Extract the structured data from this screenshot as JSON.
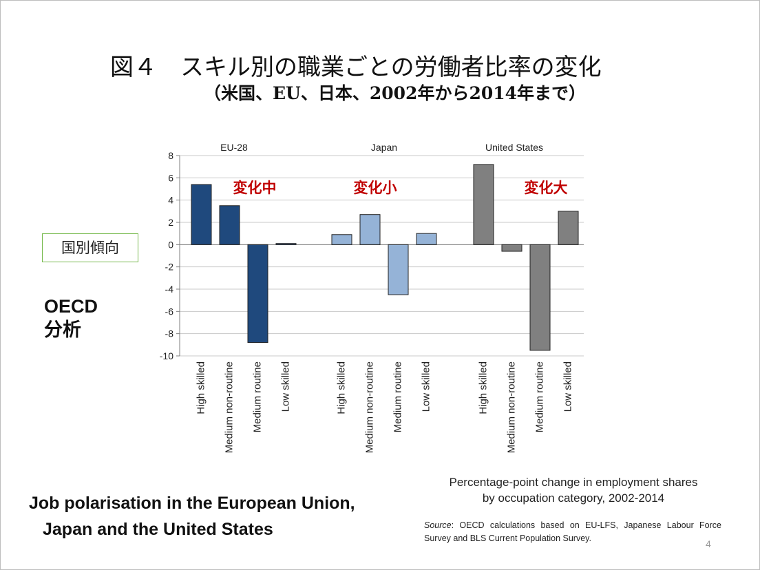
{
  "slide": {
    "title": "図４　スキル別の職業ごとの労働者比率の変化",
    "subtitle": "（米国、EU、日本、2002年から2014年まで）",
    "country_label": "国別傾向",
    "oecd_label_line1": "OECD",
    "oecd_label_line2": "分析",
    "english_title_line1": "Job polarisation in the European Union,",
    "english_title_line2": "Japan and the United States",
    "caption_line1": "Percentage-point change in employment shares",
    "caption_line2": "by occupation category, 2002-2014",
    "source_label": "Source",
    "source_text": ": OECD calculations based on EU-LFS, Japanese Labour Force Survey and BLS Current Population Survey.",
    "page_number": "4",
    "accent_color": "#c00000",
    "box_border_color": "#74b84a"
  },
  "chart_data": {
    "type": "bar",
    "ylim": [
      -10,
      8
    ],
    "yticks": [
      8,
      6,
      4,
      2,
      0,
      -2,
      -4,
      -6,
      -8,
      -10
    ],
    "grid": true,
    "categories": [
      "High skilled",
      "Medium non-routine",
      "Medium routine",
      "Low skilled"
    ],
    "groups": [
      {
        "name": "EU-28",
        "annotation": "変化中",
        "color": "#1f497d",
        "values": [
          5.4,
          3.5,
          -8.8,
          0.1
        ]
      },
      {
        "name": "Japan",
        "annotation": "変化小",
        "color": "#95b3d7",
        "values": [
          0.9,
          2.7,
          -4.5,
          1.0
        ]
      },
      {
        "name": "United States",
        "annotation": "変化大",
        "color": "#808080",
        "values": [
          7.2,
          -0.6,
          -9.5,
          3.0
        ]
      }
    ]
  }
}
